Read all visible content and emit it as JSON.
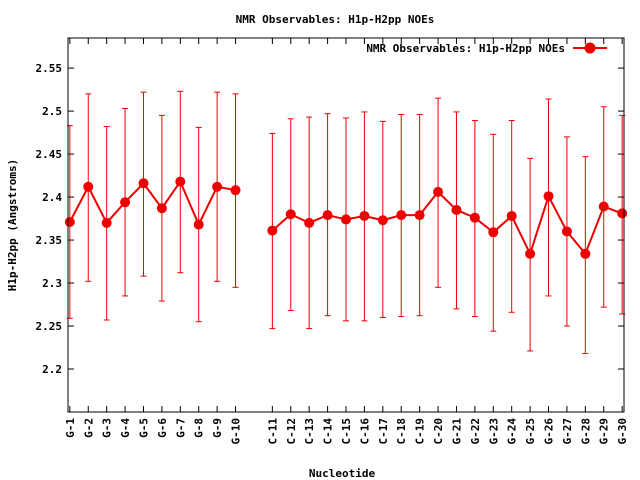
{
  "chart_data": {
    "type": "line",
    "title": "NMR Observables: H1p-H2pp NOEs",
    "xlabel": "Nucleotide",
    "ylabel": "H1p-H2pp (Angstroms)",
    "ylim": [
      2.15,
      2.585
    ],
    "yticks": [
      "2.2",
      "2.25",
      "2.3",
      "2.35",
      "2.4",
      "2.45",
      "2.5",
      "2.55"
    ],
    "legend": {
      "position": "top-right",
      "label": "NMR Observables: H1p-H2pp NOEs"
    },
    "series_color": "#ee0000",
    "categories": [
      "G-1",
      "G-2",
      "G-3",
      "G-4",
      "G-5",
      "G-6",
      "G-7",
      "G-8",
      "G-9",
      "G-10",
      "C-11",
      "C-12",
      "C-13",
      "C-14",
      "C-15",
      "C-16",
      "C-17",
      "C-18",
      "C-19",
      "C-20",
      "G-21",
      "G-22",
      "G-23",
      "G-24",
      "G-25",
      "G-26",
      "G-27",
      "G-28",
      "G-29",
      "G-30"
    ],
    "x_index": [
      1,
      2,
      3,
      4,
      5,
      6,
      7,
      8,
      9,
      10,
      12,
      13,
      14,
      15,
      16,
      17,
      18,
      19,
      20,
      21,
      22,
      23,
      24,
      25,
      26,
      27,
      28,
      29,
      30,
      31
    ],
    "segments": [
      [
        0,
        9
      ],
      [
        10,
        29
      ]
    ],
    "values": [
      2.371,
      2.412,
      2.37,
      2.394,
      2.416,
      2.387,
      2.418,
      2.368,
      2.412,
      2.408,
      2.361,
      2.38,
      2.37,
      2.379,
      2.374,
      2.378,
      2.373,
      2.379,
      2.379,
      2.406,
      2.385,
      2.376,
      2.359,
      2.378,
      2.334,
      2.401,
      2.36,
      2.334,
      2.389,
      2.381
    ],
    "err_low": [
      2.259,
      2.302,
      2.257,
      2.285,
      2.308,
      2.279,
      2.312,
      2.255,
      2.302,
      2.295,
      2.247,
      2.268,
      2.247,
      2.262,
      2.256,
      2.256,
      2.26,
      2.261,
      2.262,
      2.295,
      2.27,
      2.261,
      2.244,
      2.266,
      2.221,
      2.285,
      2.25,
      2.218,
      2.272,
      2.264
    ],
    "err_high": [
      2.483,
      2.52,
      2.482,
      2.503,
      2.522,
      2.495,
      2.523,
      2.481,
      2.522,
      2.52,
      2.474,
      2.491,
      2.493,
      2.497,
      2.492,
      2.499,
      2.488,
      2.496,
      2.496,
      2.515,
      2.499,
      2.489,
      2.473,
      2.489,
      2.445,
      2.514,
      2.47,
      2.447,
      2.505,
      2.495
    ]
  }
}
